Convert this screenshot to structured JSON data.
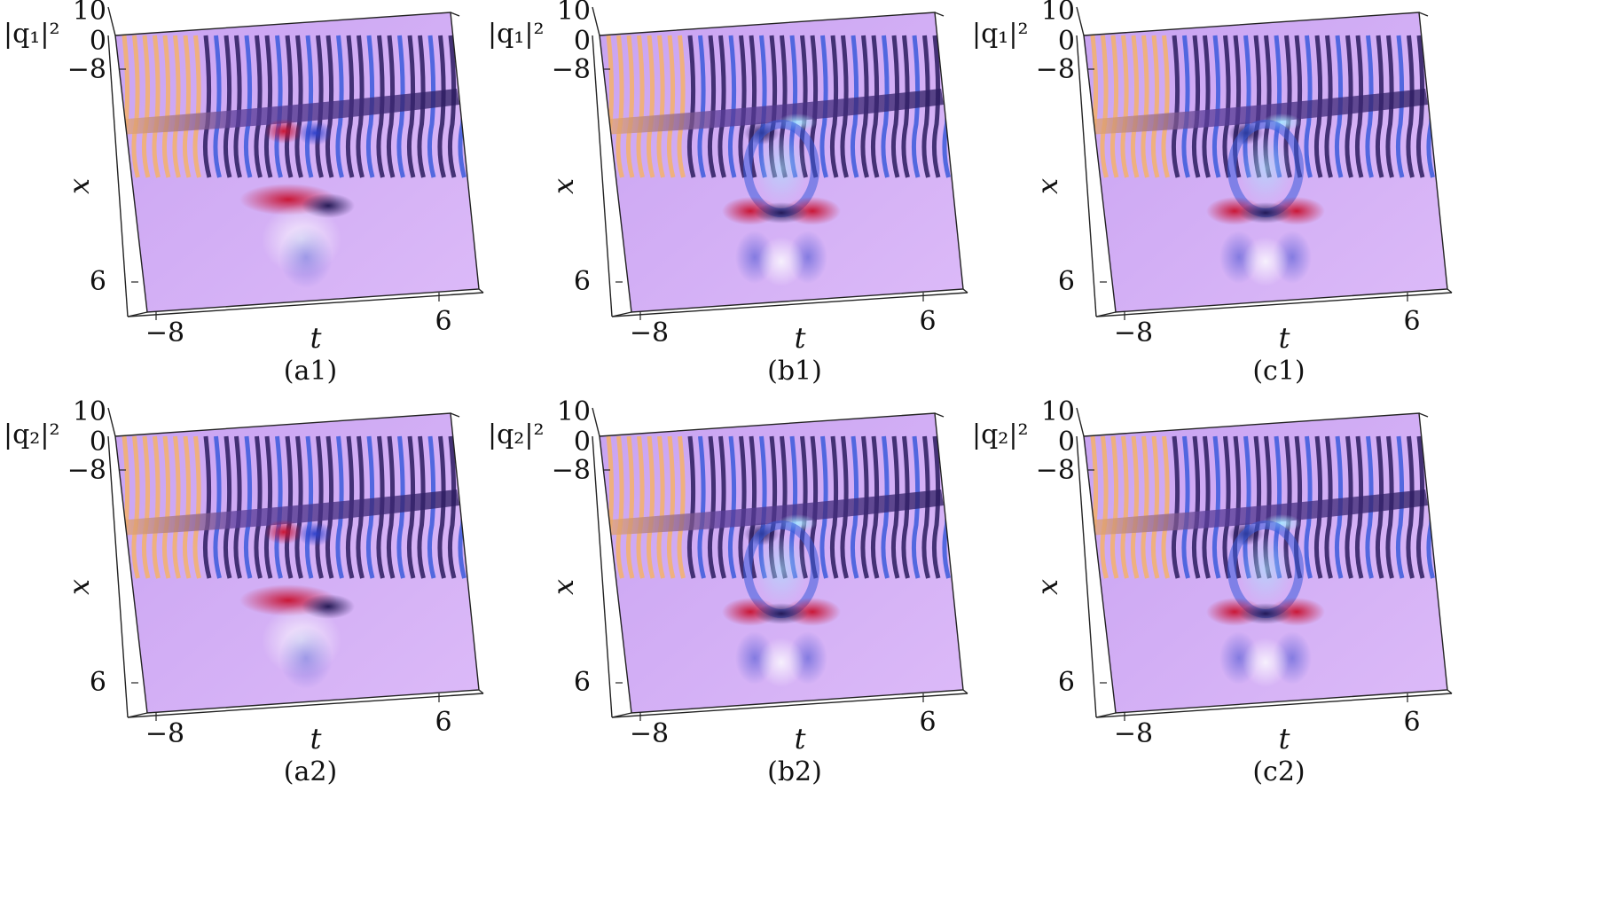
{
  "figure": {
    "surface_colors": {
      "background": "#d8b4f8",
      "crest_dark": "#2a1b5e",
      "crest_blue": "#3b5bdb",
      "crest_red": "#c8102e",
      "crest_orange": "#f4b16a",
      "highlight_cyan": "#a8e6ff"
    },
    "panels": [
      {
        "caption": "(a1)",
        "zlabel": "|q₁|²",
        "z_ticks": [
          "10",
          "0",
          "−8"
        ],
        "x_axis_label": "x",
        "x_axis_ticks": [
          "6"
        ],
        "t_axis_label": "t",
        "t_axis_ticks": [
          "−8",
          "6"
        ],
        "pattern": "breather"
      },
      {
        "caption": "(b1)",
        "zlabel": "|q₁|²",
        "z_ticks": [
          "10",
          "0",
          "−8"
        ],
        "x_axis_label": "x",
        "x_axis_ticks": [
          "6"
        ],
        "t_axis_label": "t",
        "t_axis_ticks": [
          "−8",
          "6"
        ],
        "pattern": "ring"
      },
      {
        "caption": "(c1)",
        "zlabel": "|q₁|²",
        "z_ticks": [
          "10",
          "0",
          "−8"
        ],
        "x_axis_label": "x",
        "x_axis_ticks": [
          "6"
        ],
        "t_axis_label": "t",
        "t_axis_ticks": [
          "−8",
          "6"
        ],
        "pattern": "ring"
      },
      {
        "caption": "(a2)",
        "zlabel": "|q₂|²",
        "z_ticks": [
          "10",
          "0",
          "−8"
        ],
        "x_axis_label": "x",
        "x_axis_ticks": [
          "6"
        ],
        "t_axis_label": "t",
        "t_axis_ticks": [
          "−8",
          "6"
        ],
        "pattern": "breather"
      },
      {
        "caption": "(b2)",
        "zlabel": "|q₂|²",
        "z_ticks": [
          "10",
          "0",
          "−8"
        ],
        "x_axis_label": "x",
        "x_axis_ticks": [
          "6"
        ],
        "t_axis_label": "t",
        "t_axis_ticks": [
          "−8",
          "6"
        ],
        "pattern": "ring"
      },
      {
        "caption": "(c2)",
        "zlabel": "|q₂|²",
        "z_ticks": [
          "10",
          "0",
          "−8"
        ],
        "x_axis_label": "x",
        "x_axis_ticks": [
          "6"
        ],
        "t_axis_label": "t",
        "t_axis_ticks": [
          "−8",
          "6"
        ],
        "pattern": "ring"
      }
    ]
  }
}
